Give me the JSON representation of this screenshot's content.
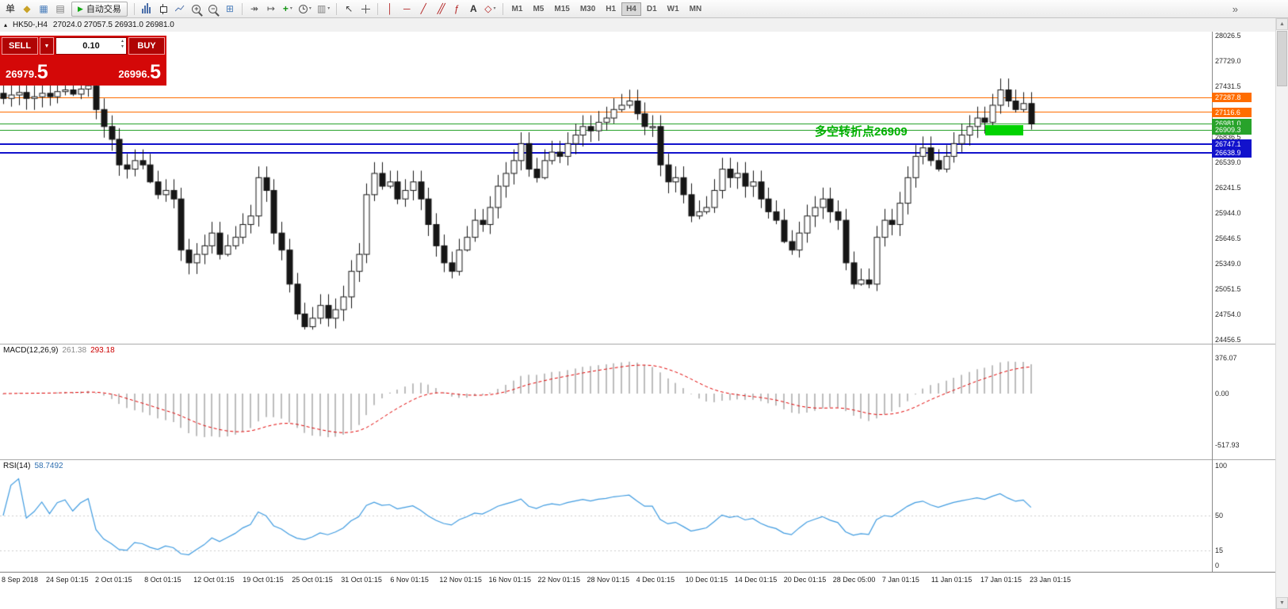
{
  "toolbar": {
    "autotrading_label": "自动交易",
    "autotrading_play": "▶",
    "overflow_glyph": "»",
    "groups": [
      {
        "name": "file-group",
        "items": [
          {
            "name": "new-order",
            "kind": "glyph",
            "glyph": "单",
            "color": "#222"
          },
          {
            "name": "profiles",
            "kind": "glyph",
            "glyph": "◆",
            "color": "#c9a227"
          },
          {
            "name": "charts",
            "kind": "glyph",
            "glyph": "▦",
            "color": "#4a7ebb"
          },
          {
            "name": "navigator",
            "kind": "glyph",
            "glyph": "▤",
            "color": "#7a7a7a"
          }
        ]
      },
      {
        "name": "chart-type-group",
        "items": [
          {
            "name": "bar-chart",
            "kind": "bars"
          },
          {
            "name": "candlestick-chart",
            "kind": "candle"
          },
          {
            "name": "line-chart",
            "kind": "line"
          },
          {
            "name": "zoom-in",
            "kind": "magp"
          },
          {
            "name": "zoom-out",
            "kind": "magm"
          },
          {
            "name": "tile-windows",
            "kind": "glyph",
            "glyph": "⊞",
            "color": "#4a7ebb"
          }
        ]
      },
      {
        "name": "scroll-group",
        "items": [
          {
            "name": "auto-scroll",
            "kind": "glyph",
            "glyph": "↠",
            "color": "#555"
          },
          {
            "name": "chart-shift",
            "kind": "glyph",
            "glyph": "↦",
            "color": "#555"
          },
          {
            "name": "indicators",
            "kind": "glyph",
            "glyph": "+",
            "color": "#149414",
            "bold": true,
            "caret": true
          },
          {
            "name": "periods",
            "kind": "clock",
            "caret": true
          },
          {
            "name": "templates",
            "kind": "glyph",
            "glyph": "▥",
            "color": "#7a7a7a",
            "caret": true
          }
        ]
      },
      {
        "name": "cursor-group",
        "items": [
          {
            "name": "cursor",
            "kind": "glyph",
            "glyph": "↖",
            "color": "#444"
          },
          {
            "name": "crosshair",
            "kind": "cross"
          }
        ]
      },
      {
        "name": "objects-group",
        "items": [
          {
            "name": "vertical-line",
            "kind": "glyph",
            "glyph": "│",
            "color": "#b22222"
          },
          {
            "name": "horizontal-line",
            "kind": "glyph",
            "glyph": "─",
            "color": "#b22222"
          },
          {
            "name": "trendline",
            "kind": "glyph",
            "glyph": "╱",
            "color": "#b22222"
          },
          {
            "name": "equidistant-channel",
            "kind": "channel",
            "glyph": "╱",
            "color": "#b22222"
          },
          {
            "name": "fibonacci",
            "kind": "glyph",
            "glyph": "ƒ",
            "color": "#b22222"
          },
          {
            "name": "text",
            "kind": "glyph",
            "glyph": "A",
            "color": "#333",
            "bold": true
          },
          {
            "name": "shapes",
            "kind": "glyph",
            "glyph": "◇",
            "color": "#b22222",
            "caret": true
          }
        ]
      }
    ],
    "timeframes": [
      "M1",
      "M5",
      "M15",
      "M30",
      "H1",
      "H4",
      "D1",
      "W1",
      "MN"
    ],
    "active_timeframe": "H4"
  },
  "chart": {
    "header": {
      "marker": "▴",
      "title": "HK50-,H4",
      "ohlc": "27024.0 27057.5 26931.0 26981.0"
    },
    "annotation": {
      "text": "多空转折点26909",
      "color": "#00b000"
    },
    "price_axis": [
      "28026.5",
      "27729.0",
      "27431.5",
      "27134.0",
      "26836.5",
      "26539.0",
      "26241.5",
      "25944.0",
      "25646.5",
      "25349.0",
      "25051.5",
      "24754.0",
      "24456.5"
    ],
    "hlines": [
      {
        "value": "27287.8",
        "price": 27287.8,
        "color": "#ff6d00",
        "width": 1
      },
      {
        "value": "27116.6",
        "price": 27116.6,
        "color": "#ff6d00",
        "width": 1
      },
      {
        "value": "26981.0",
        "price": 26981.0,
        "color": "#28a32b",
        "width": 1
      },
      {
        "value": "26909.3",
        "price": 26909.3,
        "color": "#28a32b",
        "width": 1
      },
      {
        "value": "26747.1",
        "price": 26747.1,
        "color": "#1212cc",
        "width": 2
      },
      {
        "value": "26638.9",
        "price": 26638.9,
        "color": "#1212cc",
        "width": 2
      }
    ],
    "time_axis": [
      "8 Sep 2018",
      "24 Sep 01:15",
      "2 Oct 01:15",
      "8 Oct 01:15",
      "12 Oct 01:15",
      "19 Oct 01:15",
      "25 Oct 01:15",
      "31 Oct 01:15",
      "6 Nov 01:15",
      "12 Nov 01:15",
      "16 Nov 01:15",
      "22 Nov 01:15",
      "28 Nov 01:15",
      "4 Dec 01:15",
      "10 Dec 01:15",
      "14 Dec 01:15",
      "20 Dec 01:15",
      "28 Dec 05:00",
      "7 Jan 01:15",
      "11 Jan 01:15",
      "17 Jan 01:15",
      "23 Jan 01:15"
    ]
  },
  "trade_panel": {
    "sell_label": "SELL",
    "buy_label": "BUY",
    "volume": "0.10",
    "dropdown_glyph": "▼",
    "spin_up": "▲",
    "spin_down": "▼",
    "sell_price": {
      "base": "26979.",
      "pips": "5"
    },
    "buy_price": {
      "base": "26996.",
      "pips": "5"
    }
  },
  "indicators": {
    "macd": {
      "name": "MACD(12,26,9)",
      "value_main": "261.38",
      "value_signal": "293.18",
      "axis": [
        "376.07",
        "0.00",
        "-517.93"
      ]
    },
    "rsi": {
      "name": "RSI(14)",
      "value": "58.7492",
      "axis": [
        "100",
        "50",
        "15",
        "0"
      ]
    }
  },
  "scrollbar": {
    "up_glyph": "▲",
    "down_glyph": "▼"
  },
  "chart_data": {
    "type": "candlestick",
    "symbol": "HK50-",
    "timeframe": "H4",
    "visible_price_range": [
      24456.5,
      28026.5
    ],
    "price_axis_step": 297.5,
    "current_bar": {
      "open": 27024.0,
      "high": 27057.5,
      "low": 26931.0,
      "close": 26981.0
    },
    "bid": "26979.5",
    "ask": "26996.5",
    "hline_prices": [
      27287.8,
      27116.6,
      26981.0,
      26909.3,
      26747.1,
      26638.9
    ],
    "macd_axis": [
      376.07,
      0.0,
      -517.93
    ],
    "rsi_axis": [
      0,
      100
    ],
    "closes": [
      27280,
      27320,
      27350,
      27280,
      27300,
      27340,
      27300,
      27360,
      27380,
      27330,
      27390,
      27430,
      27150,
      26950,
      26800,
      26500,
      26450,
      26550,
      26500,
      26300,
      26150,
      26200,
      26100,
      25500,
      25350,
      25450,
      25550,
      25700,
      25450,
      25550,
      25650,
      25800,
      25900,
      26350,
      26200,
      25700,
      25500,
      25100,
      24750,
      24600,
      24700,
      24850,
      24700,
      24800,
      24950,
      25250,
      25450,
      26150,
      26400,
      26250,
      26300,
      26100,
      26200,
      26300,
      26100,
      25800,
      25550,
      25350,
      25250,
      25500,
      25650,
      25850,
      25800,
      26000,
      26250,
      26400,
      26550,
      26750,
      26450,
      26350,
      26550,
      26650,
      26600,
      26750,
      26850,
      26950,
      26900,
      27000,
      27050,
      27150,
      27200,
      27250,
      27100,
      26950,
      26950,
      26500,
      26300,
      26350,
      26150,
      25900,
      25950,
      26000,
      26200,
      26450,
      26350,
      26400,
      26250,
      26300,
      26100,
      25950,
      25850,
      25600,
      25500,
      25700,
      25900,
      26000,
      26100,
      25950,
      25850,
      25350,
      25100,
      25150,
      25100,
      25650,
      25850,
      25800,
      26050,
      26350,
      26600,
      26700,
      26550,
      26450,
      26600,
      26750,
      26850,
      26950,
      27050,
      27000,
      27200,
      27380,
      27250,
      27150,
      27220,
      26981
    ]
  }
}
